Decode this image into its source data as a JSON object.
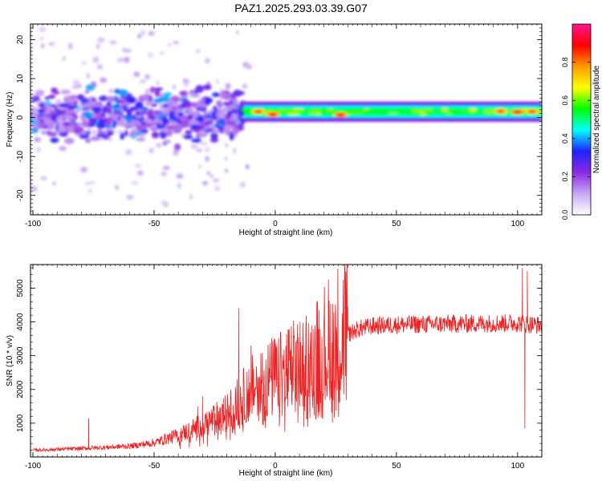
{
  "title": "PAZ1.2025.293.03.39.G07",
  "colors": {
    "snr_line": "#ee2222",
    "axis": "#000000",
    "colorbar_stops": [
      "#ffffff",
      "#c9a8f5",
      "#8a2be2",
      "#2222ff",
      "#00ffff",
      "#00ff00",
      "#ffff00",
      "#ff9900",
      "#ff0000",
      "#ff1493"
    ]
  },
  "chart_data": [
    {
      "type": "heatmap",
      "title": "PAZ1.2025.293.03.39.G07",
      "xlabel": "Height of straight line (km)",
      "ylabel": "Frequency (Hz)",
      "xlim": [
        -101,
        110
      ],
      "ylim": [
        -25,
        24
      ],
      "x_ticks": [
        -100,
        -50,
        0,
        50,
        100
      ],
      "x_tick_labels": [
        "-100",
        "-50",
        "0",
        "50",
        "100"
      ],
      "y_ticks": [
        -20,
        -10,
        0,
        10,
        20
      ],
      "y_tick_labels": [
        "-20",
        "-10",
        "0",
        "10",
        "20"
      ],
      "colorbar": {
        "label": "Normalized spectral amplitude",
        "range": [
          0,
          1
        ],
        "ticks": [
          0.0,
          0.2,
          0.4,
          0.6,
          0.8
        ],
        "tick_labels": [
          "0.0",
          "0.2",
          "0.4",
          "0.6",
          "0.8"
        ]
      },
      "band": {
        "description_x_start": -13,
        "center_freq_hz": 1.5,
        "half_width_hz": 2,
        "amplitude": 0.55
      },
      "peaks": [
        {
          "x": -7,
          "f": 1.5,
          "amp": 0.85
        },
        {
          "x": -1,
          "f": 0.8,
          "amp": 0.9
        },
        {
          "x": 27,
          "f": 0.7,
          "amp": 0.9
        },
        {
          "x": 93,
          "f": 1.6,
          "amp": 0.85
        },
        {
          "x": 100,
          "f": 1.4,
          "amp": 0.9
        },
        {
          "x": 106,
          "f": 1.5,
          "amp": 0.85
        }
      ],
      "scatter_region": {
        "x_range": [
          -100,
          -13
        ],
        "f_range": [
          -10,
          10
        ],
        "description": "Scattered low-amplitude speckle (0.1-0.35) centered near 0 Hz"
      }
    },
    {
      "type": "line",
      "xlabel": "Height of straight line (km)",
      "ylabel": "SNR (10 * v/v)",
      "xlim": [
        -101,
        110
      ],
      "ylim": [
        0,
        5700
      ],
      "x_ticks": [
        -100,
        -50,
        0,
        50,
        100
      ],
      "x_tick_labels": [
        "-100",
        "-50",
        "0",
        "50",
        "100"
      ],
      "y_ticks": [
        1000,
        2000,
        3000,
        4000,
        5000
      ],
      "y_tick_labels": [
        "1000",
        "2000",
        "3000",
        "4000",
        "5000"
      ],
      "series": [
        {
          "name": "SNR",
          "envelope_x": [
            -100,
            -80,
            -60,
            -50,
            -40,
            -30,
            -20,
            -15,
            -10,
            -5,
            0,
            5,
            10,
            15,
            20,
            25,
            30,
            35,
            40,
            50,
            60,
            70,
            80,
            90,
            100,
            105,
            110
          ],
          "envelope_y": [
            200,
            250,
            320,
            420,
            650,
            950,
            1300,
            1650,
            2000,
            2250,
            2350,
            2500,
            2650,
            2800,
            3150,
            3450,
            3650,
            3800,
            3880,
            3920,
            3930,
            3940,
            3950,
            3960,
            3970,
            3930,
            3900
          ],
          "spikes": [
            {
              "x": -77,
              "y": 1150
            },
            {
              "x": -32,
              "y": 1500
            },
            {
              "x": -30,
              "y": 1800
            },
            {
              "x": -15,
              "y": 4400
            },
            {
              "x": -10,
              "y": 3300
            },
            {
              "x": 15,
              "y": 3900
            },
            {
              "x": 15.5,
              "y": 1450
            },
            {
              "x": 102,
              "y": 5600
            },
            {
              "x": 103,
              "y": 850
            },
            {
              "x": 104,
              "y": 5500
            }
          ]
        }
      ]
    }
  ]
}
